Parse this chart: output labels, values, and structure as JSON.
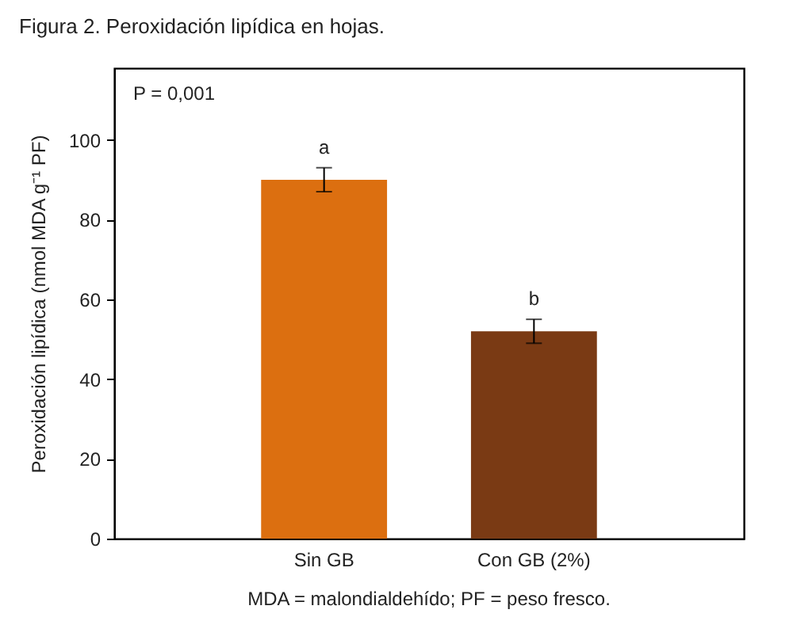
{
  "chart_data": {
    "type": "bar",
    "title": "Figura 2. Peroxidación lipídica en hojas.",
    "ylabel": "Peroxidación lipídica (nmol MDA g⁻¹ PF)",
    "categories": [
      "Sin GB",
      "Con GB (2%)"
    ],
    "values": [
      90,
      52
    ],
    "errors": [
      3,
      3
    ],
    "colors": [
      "#dc6f10",
      "#7a3a14"
    ],
    "ylim": [
      0,
      118
    ],
    "yticks": [
      0,
      20,
      40,
      60,
      80,
      100
    ],
    "grid": false,
    "annotations": [
      "P = 0,001",
      "a",
      "b",
      "MDA = malondialdehído; PF = peso fresco."
    ]
  }
}
